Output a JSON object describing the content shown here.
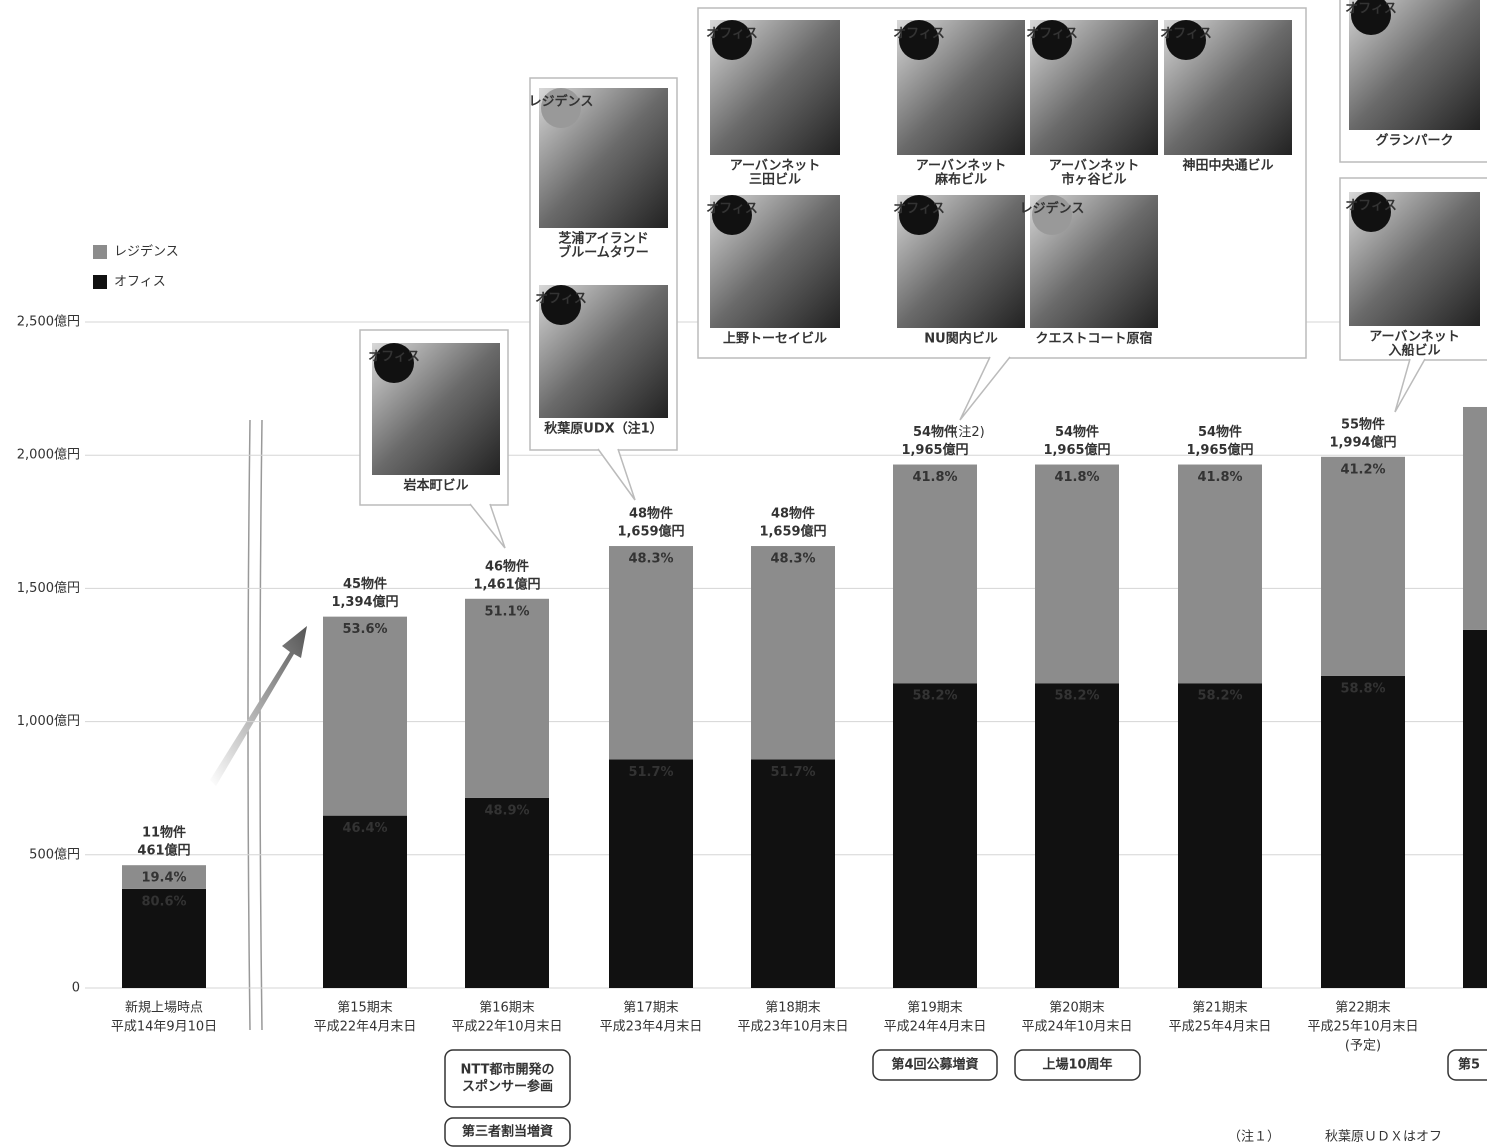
{
  "chart_data": {
    "type": "stacked_bar",
    "legend": [
      "レジデンス",
      "オフィス"
    ],
    "ylim": [
      0,
      2500
    ],
    "yticks": [
      0,
      {
        "value": 500,
        "label": "500億円"
      },
      {
        "value": 1000,
        "label": "1,000億円"
      },
      {
        "value": 1500,
        "label": "1,500億円"
      },
      {
        "value": 2000,
        "label": "2,000億円"
      },
      {
        "value": 2500,
        "label": "2,500億円"
      }
    ],
    "grid": true,
    "categories": [
      [
        "新規上場時点",
        "平成14年9月10日"
      ],
      [
        "第15期末",
        "平成22年4月末日"
      ],
      [
        "第16期末",
        "平成22年10月末日"
      ],
      [
        "第17期末",
        "平成23年4月末日"
      ],
      [
        "第18期末",
        "平成23年10月末日"
      ],
      [
        "第19期末",
        "平成24年4月末日"
      ],
      [
        "第20期末",
        "平成24年10月末日"
      ],
      [
        "第21期末",
        "平成25年4月末日"
      ],
      [
        "第22期末",
        "平成25年10月末日",
        "(予定)"
      ],
      null
    ],
    "series": [
      {
        "name": "オフィス",
        "color": "#111111",
        "values": [
          372,
          647,
          714,
          858,
          858,
          1144,
          1144,
          1144,
          1172,
          1344
        ],
        "share_labels": [
          "80.6%",
          "46.4%",
          "48.9%",
          "51.7%",
          "51.7%",
          "58.2%",
          "58.2%",
          "58.2%",
          "58.8%",
          null
        ]
      },
      {
        "name": "レジデンス",
        "color": "#8c8c8c",
        "values": [
          89,
          747,
          747,
          801,
          801,
          821,
          821,
          821,
          822,
          837
        ],
        "share_labels": [
          "19.4%",
          "53.6%",
          "51.1%",
          "48.3%",
          "48.3%",
          "41.8%",
          "41.8%",
          "41.8%",
          "41.2%",
          null
        ]
      }
    ],
    "counts": [
      "11物件",
      "45物件",
      "46物件",
      "48物件",
      "48物件",
      "54物件",
      "54物件",
      "54物件",
      "55物件",
      null
    ],
    "count_notes": [
      null,
      null,
      null,
      null,
      null,
      "(注2)",
      null,
      null,
      null,
      null
    ],
    "total_labels": [
      "461億円",
      "1,394億円",
      "1,461億円",
      "1,659億円",
      "1,659億円",
      "1,965億円",
      "1,965億円",
      "1,965億円",
      "1,994億円",
      null
    ],
    "callouts": [
      {
        "photos": [
          {
            "badge": "オフィス",
            "caption": [
              "岩本町ビル"
            ]
          }
        ]
      },
      {
        "photos": [
          {
            "badge": "レジデンス",
            "caption": [
              "芝浦アイランド",
              "ブルームタワー"
            ]
          },
          {
            "badge": "オフィス",
            "caption": [
              "秋葉原UDX（注1）"
            ]
          }
        ]
      },
      {
        "photos": [
          {
            "badge": "オフィス",
            "caption": [
              "アーバンネット",
              "三田ビル"
            ]
          },
          {
            "badge": "オフィス",
            "caption": [
              "アーバンネット",
              "麻布ビル"
            ]
          },
          {
            "badge": "オフィス",
            "caption": [
              "アーバンネット",
              "市ヶ谷ビル"
            ]
          },
          {
            "badge": "オフィス",
            "caption": [
              "神田中央通ビル"
            ]
          },
          {
            "badge": "オフィス",
            "caption": [
              "上野トーセイビル"
            ]
          },
          {
            "badge": "オフィス",
            "caption": [
              "NU関内ビル"
            ]
          },
          {
            "badge": "レジデンス",
            "caption": [
              "クエストコート原宿"
            ]
          }
        ]
      },
      {
        "photos": [
          {
            "badge": "オフィス",
            "caption": [
              "グランパーク"
            ]
          }
        ]
      },
      {
        "photos": [
          {
            "badge": "オフィス",
            "caption": [
              "アーバンネット",
              "入船ビル"
            ]
          }
        ]
      }
    ],
    "events": [
      [
        "NTT都市開発の",
        "スポンサー参画"
      ],
      [
        "第三者割当増資"
      ],
      [
        "第4回公募増資"
      ],
      [
        "上場10周年"
      ],
      [
        "第5"
      ]
    ],
    "footnote": [
      "（注１）",
      "秋葉原ＵＤＸはオフ"
    ]
  }
}
